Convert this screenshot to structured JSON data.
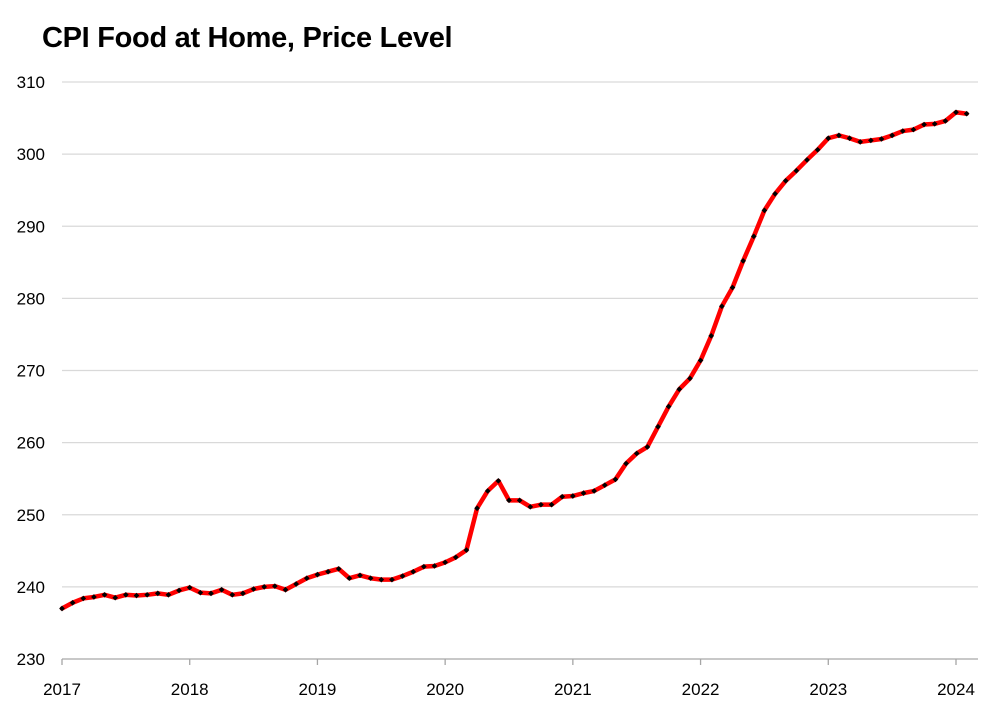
{
  "chart_data": {
    "type": "line",
    "title": "CPI Food at Home, Price Level",
    "xlabel": "",
    "ylabel": "",
    "ylim": [
      230,
      310
    ],
    "xlim": [
      2017.0,
      2024.167
    ],
    "yticks": [
      230,
      240,
      250,
      260,
      270,
      280,
      290,
      300,
      310
    ],
    "xticks": [
      {
        "value": 2017,
        "label": "2017"
      },
      {
        "value": 2018,
        "label": "2018"
      },
      {
        "value": 2019,
        "label": "2019"
      },
      {
        "value": 2020,
        "label": "2020"
      },
      {
        "value": 2021,
        "label": "2021"
      },
      {
        "value": 2022,
        "label": "2022"
      },
      {
        "value": 2023,
        "label": "2023"
      },
      {
        "value": 2024,
        "label": "2024"
      }
    ],
    "grid": "horizontal",
    "legend": "none",
    "colors": {
      "line": "#ff0000",
      "markers": "#000000",
      "grid": "#d9d9d9",
      "axis": "#a6a6a6"
    },
    "series": [
      {
        "x_start": "2017-01",
        "frequency": "monthly",
        "values": [
          237.0,
          237.8,
          238.4,
          238.6,
          238.9,
          238.5,
          238.9,
          238.8,
          238.9,
          239.1,
          238.9,
          239.5,
          239.9,
          239.2,
          239.1,
          239.6,
          238.9,
          239.1,
          239.7,
          240.0,
          240.1,
          239.6,
          240.4,
          241.2,
          241.7,
          242.1,
          242.5,
          241.2,
          241.6,
          241.2,
          241.0,
          241.0,
          241.5,
          242.1,
          242.8,
          242.9,
          243.4,
          244.1,
          245.1,
          250.9,
          253.3,
          254.7,
          252.0,
          252.0,
          251.1,
          251.4,
          251.4,
          252.5,
          252.6,
          253.0,
          253.3,
          254.1,
          254.9,
          257.1,
          258.5,
          259.4,
          262.2,
          265.0,
          267.4,
          268.9,
          271.4,
          274.8,
          278.9,
          281.5,
          285.2,
          288.6,
          292.2,
          294.5,
          296.3,
          297.7,
          299.2,
          300.6,
          302.2,
          302.6,
          302.2,
          301.7,
          301.9,
          302.1,
          302.6,
          303.2,
          303.4,
          304.1,
          304.2,
          304.6,
          305.8,
          305.6
        ]
      }
    ]
  }
}
